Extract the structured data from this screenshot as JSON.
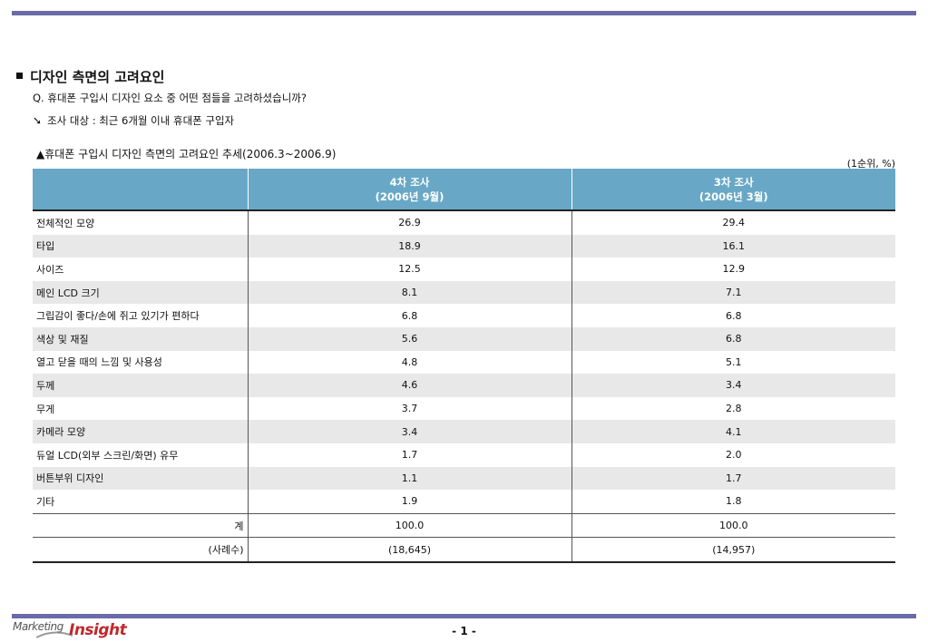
{
  "header": {
    "section_title": "디자인 측면의 고려요인"
  },
  "question": "Q.  휴대폰 구입시 디자인 요소 중 어떤 점들을 고려하셨습니까?",
  "target": "조사 대상 : 최근 6개월 이내 휴대폰 구입자",
  "caption": "▲휴대폰 구입시 디자인 측면의 고려요인 추세(2006.3~2006.9)",
  "unit": "(1순위, %)",
  "table": {
    "columns": [
      {
        "line1": "4차 조사",
        "line2": "(2006년 9월)"
      },
      {
        "line1": "3차 조사",
        "line2": "(2006년 3월)"
      }
    ],
    "rows": [
      {
        "label": "전체적인 모양",
        "v1": "26.9",
        "v2": "29.4"
      },
      {
        "label": "타입",
        "v1": "18.9",
        "v2": "16.1"
      },
      {
        "label": "사이즈",
        "v1": "12.5",
        "v2": "12.9"
      },
      {
        "label": "메인 LCD 크기",
        "v1": "8.1",
        "v2": "7.1"
      },
      {
        "label": "그립감이 좋다/손에 쥐고 있기가 편하다",
        "v1": "6.8",
        "v2": "6.8"
      },
      {
        "label": "색상 및 재질",
        "v1": "5.6",
        "v2": "6.8"
      },
      {
        "label": "열고 닫을 때의 느낌 및 사용성",
        "v1": "4.8",
        "v2": "5.1"
      },
      {
        "label": "두께",
        "v1": "4.6",
        "v2": "3.4"
      },
      {
        "label": "무게",
        "v1": "3.7",
        "v2": "2.8"
      },
      {
        "label": "카메라 모양",
        "v1": "3.4",
        "v2": "4.1"
      },
      {
        "label": "듀얼 LCD(외부 스크린/화면) 유무",
        "v1": "1.7",
        "v2": "2.0"
      },
      {
        "label": "버튼부위 디자인",
        "v1": "1.1",
        "v2": "1.7"
      },
      {
        "label": "기타",
        "v1": "1.9",
        "v2": "1.8"
      }
    ],
    "total": {
      "label": "계",
      "v1": "100.0",
      "v2": "100.0"
    },
    "cases": {
      "label": "(사례수)",
      "v1": "(18,645)",
      "v2": "(14,957)"
    }
  },
  "footer": {
    "logo_left": "Marketing",
    "logo_right": "Insight",
    "page": "- 1 -"
  },
  "colors": {
    "rule": "#6b6aa8",
    "header_bg": "#68a8c6",
    "alt_row": "#e8e8e8",
    "logo_red": "#c0282d"
  }
}
